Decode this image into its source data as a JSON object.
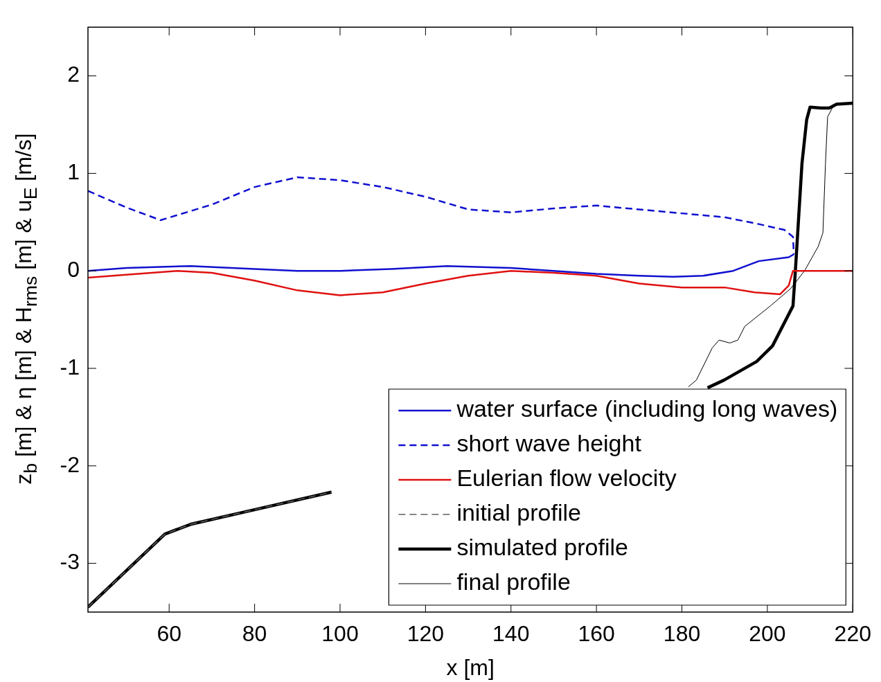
{
  "chart_data": {
    "type": "line",
    "xlabel": "x [m]",
    "ylabel": "z$_{b}$ [m] & η [m] & H$_{rms}$ [m] & u$_{E}$ [m/s]",
    "xlim": [
      41,
      220
    ],
    "ylim": [
      -3.5,
      2.5
    ],
    "xticks": [
      60,
      80,
      100,
      120,
      140,
      160,
      180,
      200,
      220
    ],
    "yticks": [
      -3,
      -2,
      -1,
      0,
      1,
      2
    ],
    "legend": "bottom right",
    "series": [
      {
        "name": "water surface (including long waves)",
        "color": "#1010d0",
        "line_style": "solid",
        "x": [
          41,
          50,
          65,
          80,
          90,
          100,
          112,
          125,
          140,
          150,
          160,
          170,
          178,
          185,
          192,
          198,
          205,
          206.2
        ],
        "values": [
          0.0,
          0.03,
          0.05,
          0.02,
          0.0,
          0.0,
          0.02,
          0.05,
          0.03,
          0.0,
          -0.03,
          -0.05,
          -0.06,
          -0.05,
          0.0,
          0.1,
          0.14,
          0.17
        ]
      },
      {
        "name": "short wave height",
        "color": "#1010d0",
        "line_style": "dashed",
        "x": [
          41,
          50,
          58,
          70,
          80,
          90,
          100,
          110,
          120,
          130,
          140,
          150,
          160,
          170,
          180,
          190,
          198,
          204,
          206,
          206.2
        ],
        "values": [
          0.82,
          0.65,
          0.52,
          0.68,
          0.86,
          0.96,
          0.93,
          0.86,
          0.76,
          0.63,
          0.6,
          0.64,
          0.67,
          0.63,
          0.59,
          0.55,
          0.48,
          0.42,
          0.35,
          0.17
        ]
      },
      {
        "name": "Eulerian flow velocity",
        "color": "#e01010",
        "line_style": "solid",
        "x": [
          41,
          50,
          62,
          70,
          80,
          90,
          100,
          110,
          120,
          130,
          140,
          150,
          160,
          170,
          180,
          190,
          197,
          203,
          205,
          206,
          207,
          220
        ],
        "values": [
          -0.07,
          -0.04,
          0.0,
          -0.02,
          -0.1,
          -0.2,
          -0.25,
          -0.22,
          -0.13,
          -0.05,
          0.0,
          -0.02,
          -0.05,
          -0.13,
          -0.17,
          -0.17,
          -0.22,
          -0.24,
          -0.15,
          0.0,
          0.0,
          0.0
        ]
      },
      {
        "name": "initial profile",
        "color": "#606060",
        "line_style": "dashed",
        "x": [
          41,
          59,
          65,
          80,
          98
        ],
        "values": [
          -3.45,
          -2.7,
          -2.6,
          -2.45,
          -2.27
        ]
      },
      {
        "name": "simulated profile",
        "color": "#000000",
        "line_style": "solid",
        "x": [
          41,
          59,
          65,
          80,
          98,
          140,
          186,
          189.9,
          197.5,
          201.2,
          206,
          206.5,
          208.1,
          209.2,
          210,
          212.5,
          214.5,
          216.2,
          220
        ],
        "values": [
          -3.45,
          -2.7,
          -2.6,
          -2.45,
          -2.27,
          null,
          -1.2,
          -1.12,
          -0.93,
          -0.77,
          -0.36,
          -0.04,
          1.1,
          1.55,
          1.68,
          1.67,
          1.67,
          1.71,
          1.72
        ]
      },
      {
        "name": "final profile",
        "color": "#000000",
        "line_style": "solid",
        "x": [
          181.5,
          183.4,
          187.1,
          188.7,
          191.2,
          193.1,
          194.7,
          200.7,
          205.5,
          208.7,
          211.9,
          213,
          213.6,
          214.1,
          215.2,
          216.2,
          220
        ],
        "values": [
          -1.19,
          -1.12,
          -0.79,
          -0.71,
          -0.74,
          -0.71,
          -0.57,
          -0.36,
          -0.18,
          0.0,
          0.25,
          0.39,
          1.1,
          1.58,
          1.67,
          1.71,
          1.72
        ]
      }
    ]
  }
}
